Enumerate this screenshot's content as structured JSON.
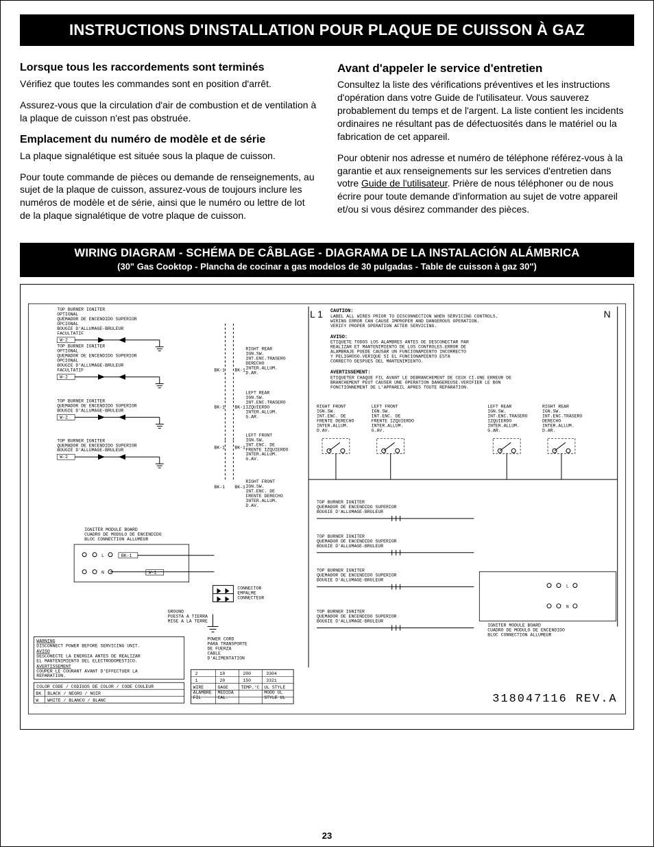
{
  "title_bar": "INSTRUCTIONS D'INSTALLATION POUR PLAQUE DE CUISSON À GAZ",
  "page_number": "23",
  "left": {
    "sec1": {
      "heading": "Lorsque tous les raccordements sont terminés",
      "p1": "Vérifiez que toutes les commandes sont en position d'arrêt.",
      "p2": "Assurez-vous que la circulation d'air de combustion et de ventilation à la plaque de cuisson n'est pas obstruée."
    },
    "sec2": {
      "heading": "Emplacement du numéro de modèle et de série",
      "p1": "La plaque signalétique est située sous la plaque de cuisson.",
      "p2": "Pour toute commande de pièces ou demande de renseignements, au sujet de la plaque de cuisson, assurez-vous de toujours inclure les numéros de modèle et de série, ainsi que le numéro ou lettre de lot de la plaque signalétique de votre plaque de cuisson."
    }
  },
  "right": {
    "heading": "Avant d'appeler le service d'entretien",
    "p1": "Consultez la liste des vérifications préventives et les instructions d'opération dans votre Guide de l'utilisateur. Vous sauverez probablement du temps et de l'argent. La liste contient les incidents ordinaires ne résultant pas de défectuosités dans le matériel ou la fabrication de cet appareil.",
    "p2a": "Pour obtenir nos adresse et numéro de téléphone référez-vous à la garantie et aux renseignements sur les services d'entretien dans votre ",
    "p2_link": "Guide de l'utilisateur",
    "p2b": ". Prière de nous téléphoner ou de nous écrire pour toute demande d'information au sujet de votre appareil et/ou si vous désirez commander des pièces."
  },
  "wiring": {
    "title": "WIRING DIAGRAM - SCHÉMA DE CÂBLAGE - DIAGRAMA DE LA INSTALACIÓN ALÁMBRICA",
    "subtitle": "(30\" Gas Cooktop - Plancha de cocinar a gas modelos de 30 pulgadas - Table de cuisson à gaz 30\")",
    "rev": "318047116  REV.A",
    "L1": "L 1",
    "N": "N",
    "caution": {
      "h": "CAUTION:",
      "l1": "LABEL ALL WIRES PRIOR TO DISCONNECTION WHEN SERVICING CONTROLS.",
      "l2": "WIRING ERROR CAN CAUSE IMPROPER AND DANGEROUS OPERATION.",
      "l3": "VERIFY PROPER OPERATION AFTER SERVICING."
    },
    "aviso": {
      "h": "AVISO:",
      "l1": "ETIQUETE TODOS LOS ALAMBRES ANTES DE DESCONECTAR PAR",
      "l2": "REALIZAR ET MANTENIMIENTO DE LOS CONTROLES.ERROR DE",
      "l3": "ALAMBRAJE PUEDE CAUSAR UN FUNCIONAMIENTO INCORRECTO",
      "l4": "Y PELIGROSO.VERIQUE SI EL FUNCIONAMIENTO ESTA",
      "l5": "CORRECTO DESPUES DEL MANTENIMIENTO."
    },
    "avert": {
      "h": "AVERTISSEMENT:",
      "l1": "ETIQUETER CHAQUE FIL AVANT LE DEBRANCHEMENT DE CEUX CI.UNE ERREUR DE",
      "l2": "BRANCHEMENT PEUT CAUSER UNE OPERATION DANGEREUSE.VERIFIER LE BON",
      "l3": "FONCTIONNEMENT DE L'APPAREIL APRES TOUTE REPARATION."
    },
    "igniter_block": [
      "TOP BURNER IGNITER",
      "OPTIONAL",
      "QUEMADOR DE ENCENDIDO SUPERIOR",
      "OPCIONAL",
      "BOUGIE D'ALLUMAGE-BRULEUR",
      "FACULTATIF"
    ],
    "igniter_block2": [
      "TOP BURNER IGNITER",
      "OPTIONAL",
      "QUEMADOR DE ENCENDIDO SUPERIOR",
      "OPCIONAL",
      "BOUGIE D'ALLUMAGE-BRULEUR",
      "FACULTATIF"
    ],
    "igniter_block3": [
      "TOP BURNER IGNITER",
      "QUEMADOR DE ENCENDIDO SUPERIOR",
      "BOUGIE D'ALLUMAGE-BRULEUR"
    ],
    "igniter_block4": [
      "TOP BURNER IGNITER",
      "QUEMADOR DE ENCENDIDO SUPERIOR",
      "BOUGIE D'ALLUMAGE-BRULEUR"
    ],
    "module_board": [
      "IGNITER MODULE BOARD",
      "CUADRO DE MODULO DE ENCENDIDO",
      "BLOC CONNECTION ALLUMEUR"
    ],
    "module_board_right": [
      "IGNITER MODULE BOARD",
      "CUADRO DE MODULO DE ENCENDIDO",
      "BLOC CONNECTION ALLUMEUR"
    ],
    "right_rear": [
      "RIGHT REAR",
      "IGN.SW.",
      "INT.ENC.TRASERO",
      "DERECHO",
      "INTER.ALLUM.",
      "D.AR."
    ],
    "left_rear": [
      "LEFT REAR",
      "IGN.SW.",
      "INT.ENC.TRASERO",
      "IZQUIERDO",
      "INTER.ALLUM.",
      "G.AR."
    ],
    "left_front": [
      "LEFT FRONT",
      "IGN.SW.",
      "INT.ENC. DE",
      "FRENTE IZQUIERDO",
      "INTER.ALLUM.",
      "G.AV."
    ],
    "right_front": [
      "RIGHT FRONT",
      "IGN.SW.",
      "INT.ENC. DE",
      "FRENTE DERECHO",
      "INTER.ALLUM.",
      "D.AV."
    ],
    "sw_cols": [
      [
        "RIGHT FRONT",
        "IGN.SW.",
        "INT.ENC. DE",
        "FRENTE DERECHO",
        "INTER.ALLUM.",
        "D.AV."
      ],
      [
        "LEFT FRONT",
        "IGN.SW.",
        "INT.ENC. DE",
        "FRENTE IZQUIERDO",
        "INTER.ALLUM.",
        "G.AV."
      ],
      [
        "LEFT REAR",
        "IGN.SW.",
        "INT.ENC.TRASERO",
        "IZQUIERDO",
        "INTER.ALLUM.",
        "G.AR."
      ],
      [
        "RIGHT REAR",
        "IGN.SW.",
        "INT.ENC.TRASERO",
        "DERECHO",
        "INTER.ALLUM.",
        "D.AR."
      ]
    ],
    "tbi_right": [
      "TOP BURNER IGNITER",
      "QUEMADOR DE ENCENDIDO SUPERIOR",
      "BOUGIE D'ALLUMAGE-BRULEUR"
    ],
    "connector": [
      "CONNECTOR",
      "EMPALME",
      "CONNECTEUR"
    ],
    "ground": [
      "GROUND",
      "PUESTA A TIERRA",
      "MISE A LA TERRE"
    ],
    "power_cord": [
      "POWER CORD",
      "PARA TRANSPORTE",
      "DE FUERZA",
      "CABLE",
      "D'ALIMENTATION"
    ],
    "warning_box": {
      "h1": "WARNING",
      "l1": "DISCONNECT POWER BEFORE SERVICING UNIT.",
      "h2": "AVISO",
      "l2a": "DESCONECTE LA ENERGIA ANTES DE REALIZAR",
      "l2b": "EL MANTENIMIENTO DEL ELECTRODOMESTICO.",
      "h3": "AVERTISSEMENT",
      "l3a": "COUPER LE COURANT AVANT D'EFFECTUER LA",
      "l3b": "REPARATION."
    },
    "color_header": "COLOR CODE / CODIGOS DE COLOR / CODE COULEUR",
    "color_rows": [
      [
        "BK",
        "BLACK  /   NEGRO / NOIR"
      ],
      [
        "W",
        "WHITE  /  BLANCO / BLANC"
      ]
    ],
    "wire_table": {
      "headers": [
        "WIRE",
        "GAGE",
        "TEMP.°C",
        "UL STYLE"
      ],
      "headers2": [
        "ALAMBRE",
        "MEDIDA",
        "",
        "MODO UL"
      ],
      "headers3": [
        "FIL",
        "CAL.",
        "",
        "STYLE UL"
      ],
      "rows": [
        [
          "2",
          "18",
          "200",
          "3304"
        ],
        [
          "1",
          "20",
          "150",
          "3321"
        ]
      ]
    },
    "wire_labels": {
      "w2": "W-2",
      "bk1": "BK-1",
      "w1": "W-1",
      "L": "L",
      "N": "N"
    }
  }
}
